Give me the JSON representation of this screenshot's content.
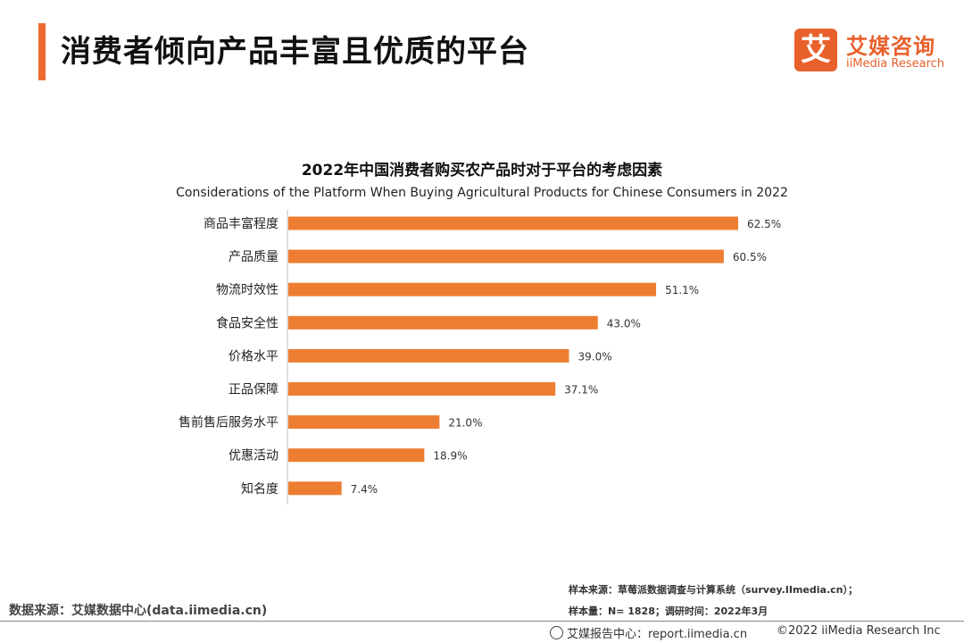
{
  "header": {
    "title": "消费者倾向产品丰富且优质的平台",
    "logo_mark": "艾",
    "logo_cn": "艾媒咨询",
    "logo_en": "iiMedia Research",
    "accent_color": "#ee6a30"
  },
  "chart_data": {
    "type": "bar",
    "orientation": "horizontal",
    "title": "2022年中国消费者购买农产品时对于平台的考虑因素",
    "subtitle": "Considerations of the Platform When Buying Agricultural Products for Chinese Consumers in 2022",
    "categories": [
      "商品丰富程度",
      "产品质量",
      "物流时效性",
      "食品安全性",
      "价格水平",
      "正品保障",
      "售前售后服务水平",
      "优惠活动",
      "知名度"
    ],
    "values": [
      62.5,
      60.5,
      51.1,
      43.0,
      39.0,
      37.1,
      21.0,
      18.9,
      7.4
    ],
    "value_labels": [
      "62.5%",
      "60.5%",
      "51.1%",
      "43.0%",
      "39.0%",
      "37.1%",
      "21.0%",
      "18.9%",
      "7.4%"
    ],
    "unit": "%",
    "xlim": [
      0,
      62.5
    ],
    "bar_color": "#ed7d31",
    "grid": false,
    "legend": "none"
  },
  "footer": {
    "data_source": "数据来源：艾媒数据中心(data.iimedia.cn)",
    "sample_source": "样本来源：草莓派数据调查与计算系统（survey.IImedia.cn）；",
    "sample_info": "样本量：N= 1828；调研时间：2022年3月",
    "report_center": "艾媒报告中心：report.iimedia.cn",
    "copyright": "©2022  iiMedia Research  Inc"
  }
}
